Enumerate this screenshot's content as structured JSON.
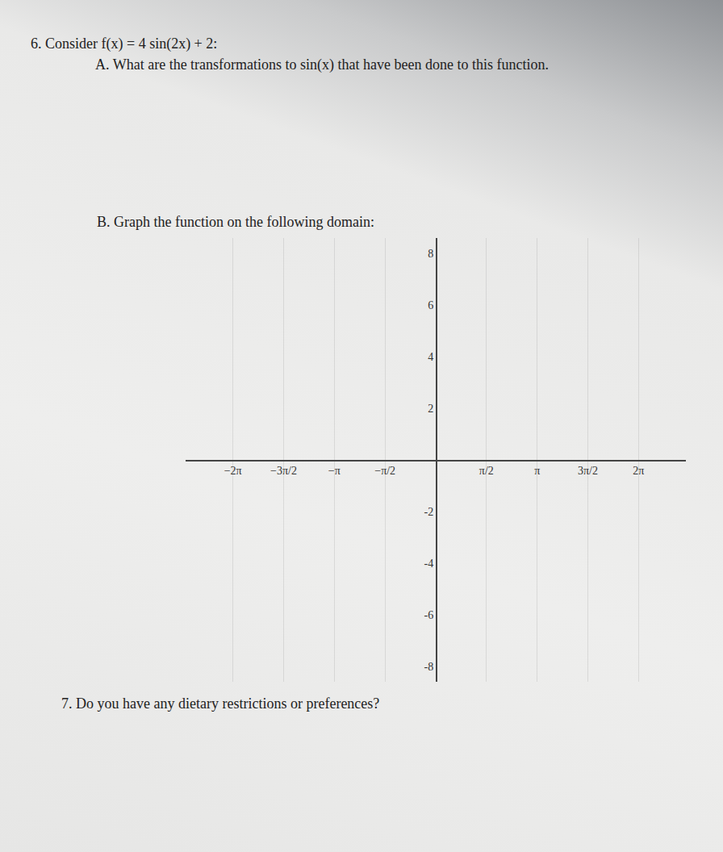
{
  "document": {
    "questions": [
      {
        "number": "6.",
        "text": "Consider f(x) = 4 sin(2x) + 2:",
        "parts": [
          {
            "label": "A.",
            "text": "What are the transformations to sin(x) that have been done to this function."
          },
          {
            "label": "B.",
            "text": "Graph the function on the following domain:"
          }
        ]
      },
      {
        "number": "7.",
        "text": "Do you have any dietary restrictions or preferences?"
      }
    ]
  },
  "chart_data": {
    "type": "line",
    "xlim": [
      -7.75,
      7.75
    ],
    "ylim": [
      -8.6,
      8.6
    ],
    "xticks": [
      {
        "value": -6.2832,
        "label": "−2π"
      },
      {
        "value": -4.7124,
        "label": "−3π/2"
      },
      {
        "value": -3.1416,
        "label": "−π"
      },
      {
        "value": -1.5708,
        "label": "−π/2"
      },
      {
        "value": 1.5708,
        "label": "π/2"
      },
      {
        "value": 3.1416,
        "label": "π"
      },
      {
        "value": 4.7124,
        "label": "3π/2"
      },
      {
        "value": 6.2832,
        "label": "2π"
      }
    ],
    "yticks": [
      -8,
      -6,
      -4,
      -2,
      2,
      4,
      6,
      8
    ],
    "grid": true
  }
}
